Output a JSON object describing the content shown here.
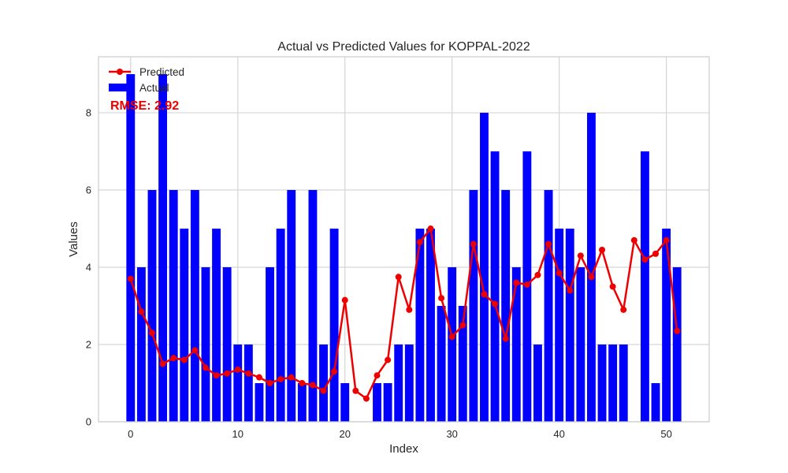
{
  "chart_data": {
    "type": "bar",
    "title": "Actual vs Predicted Values for KOPPAL-2022",
    "xlabel": "Index",
    "ylabel": "Values",
    "xlim": [
      -3,
      54
    ],
    "ylim": [
      0,
      9.45
    ],
    "xticks": [
      0,
      10,
      20,
      30,
      40,
      50
    ],
    "yticks": [
      0,
      2,
      4,
      6,
      8
    ],
    "grid": true,
    "legend_position": "top-left",
    "annotation": {
      "text": "RMSE: 2.92",
      "color": "#ee0000"
    },
    "series": [
      {
        "name": "Predicted",
        "kind": "line",
        "color": "#ee0000",
        "values": [
          3.7,
          2.85,
          2.3,
          1.5,
          1.65,
          1.6,
          1.85,
          1.4,
          1.2,
          1.25,
          1.35,
          1.25,
          1.15,
          1.0,
          1.1,
          1.15,
          1.0,
          0.95,
          0.8,
          1.3,
          3.15,
          0.8,
          0.6,
          1.2,
          1.6,
          3.75,
          2.9,
          4.65,
          5.0,
          3.2,
          2.2,
          2.5,
          4.6,
          3.3,
          3.05,
          2.15,
          3.6,
          3.55,
          3.8,
          4.6,
          3.85,
          3.4,
          4.3,
          3.75,
          4.45,
          3.5,
          2.9,
          4.7,
          4.2,
          4.35,
          4.7,
          2.35
        ]
      },
      {
        "name": "Actual",
        "kind": "bar",
        "color": "#0000ff",
        "values": [
          9,
          4,
          6,
          9,
          6,
          5,
          6,
          4,
          5,
          4,
          2,
          2,
          1,
          4,
          5,
          6,
          1,
          6,
          2,
          5,
          1,
          0,
          0,
          1,
          1,
          2,
          2,
          5,
          5,
          3,
          4,
          3,
          6,
          8,
          7,
          6,
          4,
          7,
          2,
          6,
          5,
          5,
          4,
          8,
          2,
          2,
          2,
          0,
          7,
          1,
          5,
          4
        ]
      }
    ]
  }
}
